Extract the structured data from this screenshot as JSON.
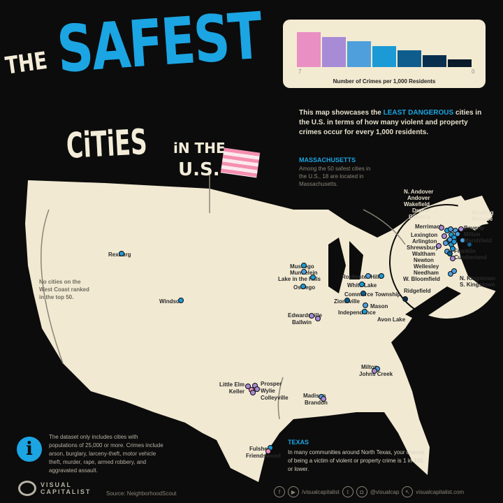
{
  "title": {
    "the": "THE",
    "safest": "SAFEST",
    "cities": "CiTiES",
    "in_the": "iN THE",
    "us": "U.S."
  },
  "legend": {
    "min_label": "7",
    "max_label": "0",
    "caption": "Number of Crimes per 1,000 Residents",
    "colors": [
      "#e98fc4",
      "#a78bd6",
      "#4e9fdc",
      "#1c9ad6",
      "#0f5d8c",
      "#0a2f4e",
      "#0a1a2a"
    ]
  },
  "intro": {
    "part1": "This map showcases the ",
    "highlight": "LEAST DANGEROUS",
    "part2": " cities in the U.S. in terms of how many violent and property crimes occur for every 1,000 residents."
  },
  "massachusetts": {
    "heading": "MASSACHUSETTS",
    "text": "Among the 50 safest cities in the U.S., 18 are located in Massachusetts."
  },
  "west_note": "No cities on the West Coast ranked in the top 50.",
  "texas": {
    "heading": "TEXAS",
    "text": "In many communities around North Texas, your chance of being a victim of violent or property crime is 1 in 155 or lower."
  },
  "info": {
    "icon": "info-icon",
    "text": "The dataset only includes cities with populations of 25,000 or more. Crimes include arson, burglary, larceny-theft, motor vehicle theft, murder, rape, armed robbery, and aggravated assault."
  },
  "footer": {
    "brand_line1": "VISUAL",
    "brand_line2": "CAPITALIST",
    "source": "Source: NeighborhoodScout",
    "handle1": "/visualcapitalist",
    "handle2": "@visualcap",
    "website": "visualcapitalist.com"
  },
  "cities": [
    {
      "name": "Rexburg",
      "color": "#1c9ad6"
    },
    {
      "name": "Windsor",
      "color": "#1c9ad6"
    },
    {
      "name": "Muskego",
      "color": "#1c9ad6"
    },
    {
      "name": "Mundelein",
      "color": "#4e9fdc"
    },
    {
      "name": "Lake in the Hills",
      "color": "#1c9ad6"
    },
    {
      "name": "Oswego",
      "color": "#1c9ad6"
    },
    {
      "name": "Rochester Hills",
      "color": "#4e9fdc"
    },
    {
      "name": "White Lake",
      "color": "#1c9ad6"
    },
    {
      "name": "Commerce Township",
      "color": "#0f5d8c"
    },
    {
      "name": "Avon Lake",
      "color": "#1c9ad6"
    },
    {
      "name": "Zionsville",
      "color": "#0f5d8c"
    },
    {
      "name": "Mason",
      "color": "#4e9fdc"
    },
    {
      "name": "Independence",
      "color": "#1c9ad6"
    },
    {
      "name": "Edwardsville",
      "color": "#a78bd6"
    },
    {
      "name": "Ballwin",
      "color": "#a78bd6"
    },
    {
      "name": "Milton",
      "color": "#4e9fdc"
    },
    {
      "name": "Johns Creek",
      "color": "#a78bd6"
    },
    {
      "name": "Madison",
      "color": "#4e9fdc"
    },
    {
      "name": "Brandon",
      "color": "#a78bd6"
    },
    {
      "name": "Little Elm",
      "color": "#a78bd6"
    },
    {
      "name": "Keller",
      "color": "#e98fc4"
    },
    {
      "name": "Prosper",
      "color": "#a78bd6"
    },
    {
      "name": "Wylie",
      "color": "#a78bd6"
    },
    {
      "name": "Colleyville",
      "color": "#a78bd6"
    },
    {
      "name": "Fulshear",
      "color": "#1c9ad6"
    },
    {
      "name": "Friendswood",
      "color": "#e98fc4"
    }
  ],
  "ne_cities": [
    "N. Andover",
    "Andover",
    "Wakefield",
    "Dracut",
    "Billerica",
    "Reading",
    "Melrose",
    "Merrimack",
    "Lexington",
    "Arlington",
    "Shrewsbury",
    "Waltham",
    "Newton",
    "Wellesley",
    "Needham",
    "W. Bloomfield",
    "Beverly",
    "Milton",
    "Marshfield",
    "Franklin",
    "Cumberland",
    "N. Kingstown",
    "S. Kingstown",
    "Ridgefield"
  ]
}
